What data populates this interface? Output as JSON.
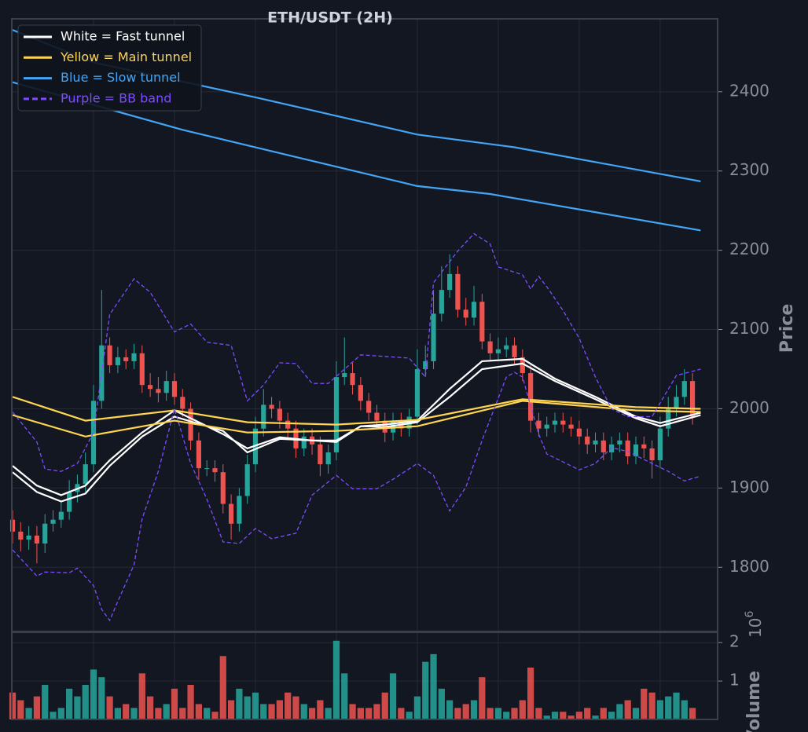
{
  "chart_data": {
    "type": "candlestick",
    "title": "ETH/USDT (2H)",
    "ylabel": "Price",
    "ylim": [
      1719,
      2492
    ],
    "yticks": [
      1800,
      1900,
      2000,
      2100,
      2200,
      2300,
      2400
    ],
    "xlim": [
      -0.1,
      87.1
    ],
    "xticks": [
      10,
      20,
      30,
      40,
      50,
      60,
      70,
      80
    ],
    "show_xtick_labels": false,
    "grid": true,
    "legend_position": "upper left",
    "up_color": "#26a69a",
    "down_color": "#ef5350",
    "open": [
      1860,
      1845,
      1835,
      1840,
      1830,
      1855,
      1860,
      1870,
      1895,
      1905,
      1930,
      2010,
      2080,
      2055,
      2065,
      2060,
      2070,
      2030,
      2025,
      2020,
      2035,
      2015,
      2000,
      1960,
      1925,
      1925,
      1920,
      1880,
      1855,
      1890,
      1930,
      1975,
      2005,
      2000,
      1985,
      1975,
      1950,
      1965,
      1955,
      1930,
      1945,
      2040,
      2045,
      2030,
      2010,
      1995,
      1985,
      1970,
      1985,
      1975,
      1990,
      2050,
      2060,
      2120,
      2150,
      2170,
      2125,
      2115,
      2135,
      2085,
      2070,
      2075,
      2080,
      2065,
      2045,
      1985,
      1975,
      1980,
      1985,
      1980,
      1975,
      1965,
      1955,
      1960,
      1945,
      1955,
      1960,
      1940,
      1955,
      1950,
      1935,
      1975,
      2000,
      2015,
      2035
    ],
    "high": [
      1872,
      1857,
      1852,
      1852,
      1867,
      1872,
      1882,
      1910,
      1917,
      1945,
      2030,
      2150,
      2090,
      2078,
      2075,
      2082,
      2080,
      2045,
      2040,
      2048,
      2045,
      2025,
      2008,
      1970,
      1935,
      1935,
      1930,
      1892,
      1900,
      1942,
      1990,
      2025,
      2015,
      2010,
      1995,
      1985,
      1975,
      1975,
      1965,
      1955,
      2060,
      2090,
      2058,
      2040,
      2020,
      2005,
      1995,
      1995,
      1995,
      2000,
      2075,
      2080,
      2150,
      2180,
      2195,
      2180,
      2140,
      2155,
      2145,
      2095,
      2090,
      2090,
      2090,
      2075,
      2055,
      1995,
      1990,
      1995,
      1995,
      1990,
      1985,
      1975,
      1970,
      1970,
      1965,
      1970,
      1970,
      1965,
      1965,
      1960,
      1990,
      2015,
      2030,
      2050,
      2045
    ],
    "low": [
      1830,
      1820,
      1822,
      1805,
      1818,
      1845,
      1850,
      1860,
      1882,
      1895,
      1920,
      2000,
      2045,
      2045,
      2050,
      2050,
      2020,
      2015,
      2008,
      2010,
      2005,
      1990,
      1948,
      1910,
      1915,
      1908,
      1868,
      1835,
      1845,
      1880,
      1920,
      1965,
      1988,
      1975,
      1962,
      1938,
      1940,
      1942,
      1915,
      1918,
      1935,
      2030,
      2018,
      1998,
      1985,
      1975,
      1958,
      1960,
      1965,
      1965,
      1980,
      2040,
      2050,
      2110,
      2140,
      2115,
      2105,
      2105,
      2075,
      2060,
      2060,
      2065,
      2055,
      2035,
      1970,
      1965,
      1965,
      1970,
      1970,
      1965,
      1955,
      1943,
      1945,
      1935,
      1935,
      1945,
      1930,
      1930,
      1938,
      1912,
      1925,
      1965,
      1990,
      2005,
      1980
    ],
    "close": [
      1845,
      1835,
      1840,
      1830,
      1855,
      1860,
      1870,
      1895,
      1905,
      1930,
      2010,
      2080,
      2055,
      2065,
      2060,
      2070,
      2030,
      2025,
      2020,
      2035,
      2015,
      2000,
      1960,
      1925,
      1925,
      1920,
      1880,
      1855,
      1890,
      1930,
      1975,
      2005,
      2000,
      1985,
      1975,
      1950,
      1965,
      1955,
      1930,
      1945,
      2040,
      2045,
      2030,
      2010,
      1995,
      1985,
      1970,
      1985,
      1975,
      1990,
      2050,
      2060,
      2120,
      2150,
      2170,
      2125,
      2115,
      2135,
      2085,
      2070,
      2075,
      2080,
      2065,
      2045,
      1985,
      1975,
      1980,
      1985,
      1980,
      1975,
      1965,
      1955,
      1960,
      1945,
      1955,
      1960,
      1940,
      1955,
      1950,
      1935,
      1975,
      2000,
      2015,
      2035,
      1990
    ],
    "overlays": [
      {
        "legend": "White = Fast tunnel",
        "color": "#ffffff",
        "dashed": false,
        "lines": [
          {
            "x": [
              0,
              3,
              6,
              9,
              12,
              16,
              20,
              26,
              29,
              33,
              37,
              40,
              43,
              46,
              50,
              54,
              58,
              63,
              67,
              72,
              77,
              80,
              85
            ],
            "values": [
              1928,
              1903,
              1891,
              1903,
              1935,
              1970,
              1998,
              1968,
              1950,
              1964,
              1960,
              1960,
              1978,
              1980,
              1985,
              2025,
              2060,
              2063,
              2038,
              2015,
              1990,
              1982,
              1995
            ]
          },
          {
            "x": [
              0,
              3,
              6,
              9,
              12,
              16,
              20,
              26,
              29,
              33,
              37,
              40,
              43,
              46,
              50,
              54,
              58,
              63,
              67,
              72,
              77,
              80,
              85
            ],
            "values": [
              1920,
              1895,
              1883,
              1893,
              1928,
              1965,
              1990,
              1972,
              1945,
              1962,
              1960,
              1958,
              1978,
              1977,
              1983,
              2015,
              2050,
              2057,
              2035,
              2012,
              1988,
              1978,
              1992
            ]
          }
        ]
      },
      {
        "legend": "Yellow = Main tunnel",
        "color": "#ffd54f",
        "dashed": false,
        "lines": [
          {
            "x": [
              0,
              9,
              20,
              29,
              40,
              50,
              63,
              77,
              85
            ],
            "values": [
              2015,
              1985,
              1998,
              1983,
              1980,
              1986,
              2012,
              2002,
              2000
            ]
          },
          {
            "x": [
              0,
              9,
              20,
              29,
              40,
              50,
              63,
              77,
              85
            ],
            "values": [
              1992,
              1965,
              1985,
              1970,
              1972,
              1978,
              2010,
              1998,
              1996
            ]
          }
        ]
      },
      {
        "legend": "Blue = Slow tunnel",
        "color": "#42a5f5",
        "dashed": false,
        "lines": [
          {
            "x": [
              0,
              10,
              30,
              50,
              62,
              85
            ],
            "values": [
              2478,
              2437,
              2393,
              2346,
              2330,
              2287
            ]
          },
          {
            "x": [
              0,
              21,
              50,
              59,
              85
            ],
            "values": [
              2412,
              2352,
              2281,
              2271,
              2225
            ]
          }
        ]
      },
      {
        "legend": "Purple = BB band",
        "color": "#7c4dff",
        "dashed": true,
        "lines": [
          {
            "x": [
              0,
              3,
              4,
              6,
              8,
              10,
              12,
              15,
              17,
              20,
              22,
              24,
              27,
              29,
              31,
              33,
              35,
              37,
              39,
              41,
              43,
              49,
              51,
              52,
              55,
              57,
              59,
              60,
              63,
              64,
              65,
              66,
              68,
              70,
              72,
              74,
              76,
              79,
              82,
              85
            ],
            "values": [
              1996,
              1958,
              1924,
              1921,
              1931,
              1970,
              2119,
              2164,
              2147,
              2097,
              2107,
              2084,
              2080,
              2010,
              2030,
              2058,
              2057,
              2032,
              2032,
              2050,
              2068,
              2064,
              2040,
              2159,
              2199,
              2221,
              2208,
              2179,
              2169,
              2151,
              2167,
              2154,
              2124,
              2089,
              2040,
              2000,
              1990,
              1990,
              2042,
              2050
            ]
          },
          {
            "x": [
              0,
              3,
              4,
              7,
              8,
              10,
              11,
              12,
              13,
              15,
              16,
              18,
              20,
              22,
              24,
              26,
              28,
              30,
              32,
              35,
              37,
              40,
              42,
              45,
              47,
              50,
              52,
              54,
              56,
              58,
              61,
              62,
              63,
              65,
              66,
              70,
              72,
              74,
              76,
              78,
              81,
              83,
              85
            ],
            "values": [
              1822,
              1789,
              1794,
              1793,
              1799,
              1777,
              1747,
              1733,
              1757,
              1803,
              1861,
              1921,
              2000,
              1931,
              1886,
              1832,
              1830,
              1849,
              1836,
              1843,
              1891,
              1916,
              1899,
              1899,
              1911,
              1931,
              1916,
              1871,
              1901,
              1960,
              2040,
              2046,
              2040,
              1968,
              1943,
              1923,
              1931,
              1951,
              1946,
              1936,
              1921,
              1909,
              1915
            ]
          }
        ]
      }
    ],
    "volume": {
      "ylabel": "Volume",
      "offset_base": "10",
      "offset_exponent": "6",
      "ylim": [
        0,
        2.27
      ],
      "yticks": [
        1,
        2
      ],
      "values": [
        0.7,
        0.5,
        0.3,
        0.6,
        0.9,
        0.2,
        0.3,
        0.8,
        0.6,
        0.9,
        1.3,
        1.1,
        0.6,
        0.3,
        0.4,
        0.3,
        1.2,
        0.6,
        0.3,
        0.4,
        0.8,
        0.3,
        0.9,
        0.4,
        0.3,
        0.2,
        1.65,
        0.5,
        0.8,
        0.6,
        0.7,
        0.4,
        0.4,
        0.5,
        0.7,
        0.6,
        0.4,
        0.3,
        0.5,
        0.3,
        2.05,
        1.2,
        0.4,
        0.3,
        0.3,
        0.4,
        0.7,
        1.2,
        0.3,
        0.2,
        0.6,
        1.5,
        1.7,
        0.8,
        0.5,
        0.3,
        0.4,
        0.5,
        1.1,
        0.3,
        0.3,
        0.2,
        0.3,
        0.5,
        1.35,
        0.3,
        0.1,
        0.2,
        0.2,
        0.1,
        0.2,
        0.3,
        0.1,
        0.3,
        0.2,
        0.4,
        0.5,
        0.3,
        0.8,
        0.7,
        0.5,
        0.6,
        0.7,
        0.5,
        0.3
      ]
    }
  }
}
